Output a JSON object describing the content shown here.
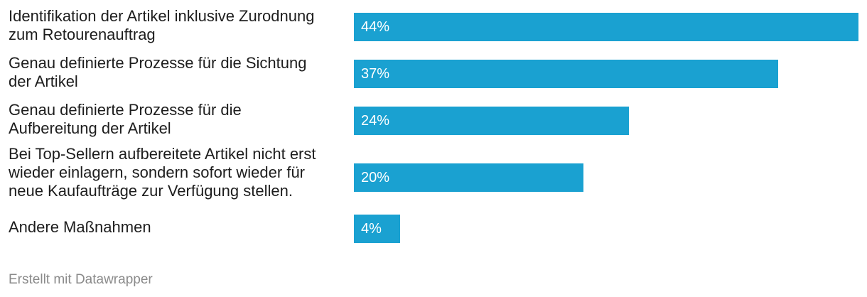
{
  "chart_data": {
    "type": "bar",
    "orientation": "horizontal",
    "categories": [
      [
        "Identifikation der Artikel inklusive Zurodnung",
        "zum Retourenauftrag"
      ],
      [
        "Genau definierte Prozesse für die Sichtung",
        "der Artikel"
      ],
      [
        "Genau definierte Prozesse für die",
        "Aufbereitung der Artikel"
      ],
      [
        "Bei Top-Sellern aufbereitete Artikel nicht erst",
        "wieder einlagern, sondern sofort wieder für",
        "neue Kaufaufträge zur Verfügung stellen."
      ],
      [
        "Andere Maßnahmen"
      ]
    ],
    "values": [
      44,
      37,
      24,
      20,
      4
    ],
    "value_labels": [
      "44%",
      "37%",
      "24%",
      "20%",
      "4%"
    ],
    "xlim": [
      0,
      44
    ],
    "unit": "%",
    "bar_color": "#1aa1d1",
    "label_color": "#1d1d1d",
    "value_label_color": "#ffffff"
  },
  "footer": {
    "credit": "Erstellt mit Datawrapper"
  }
}
